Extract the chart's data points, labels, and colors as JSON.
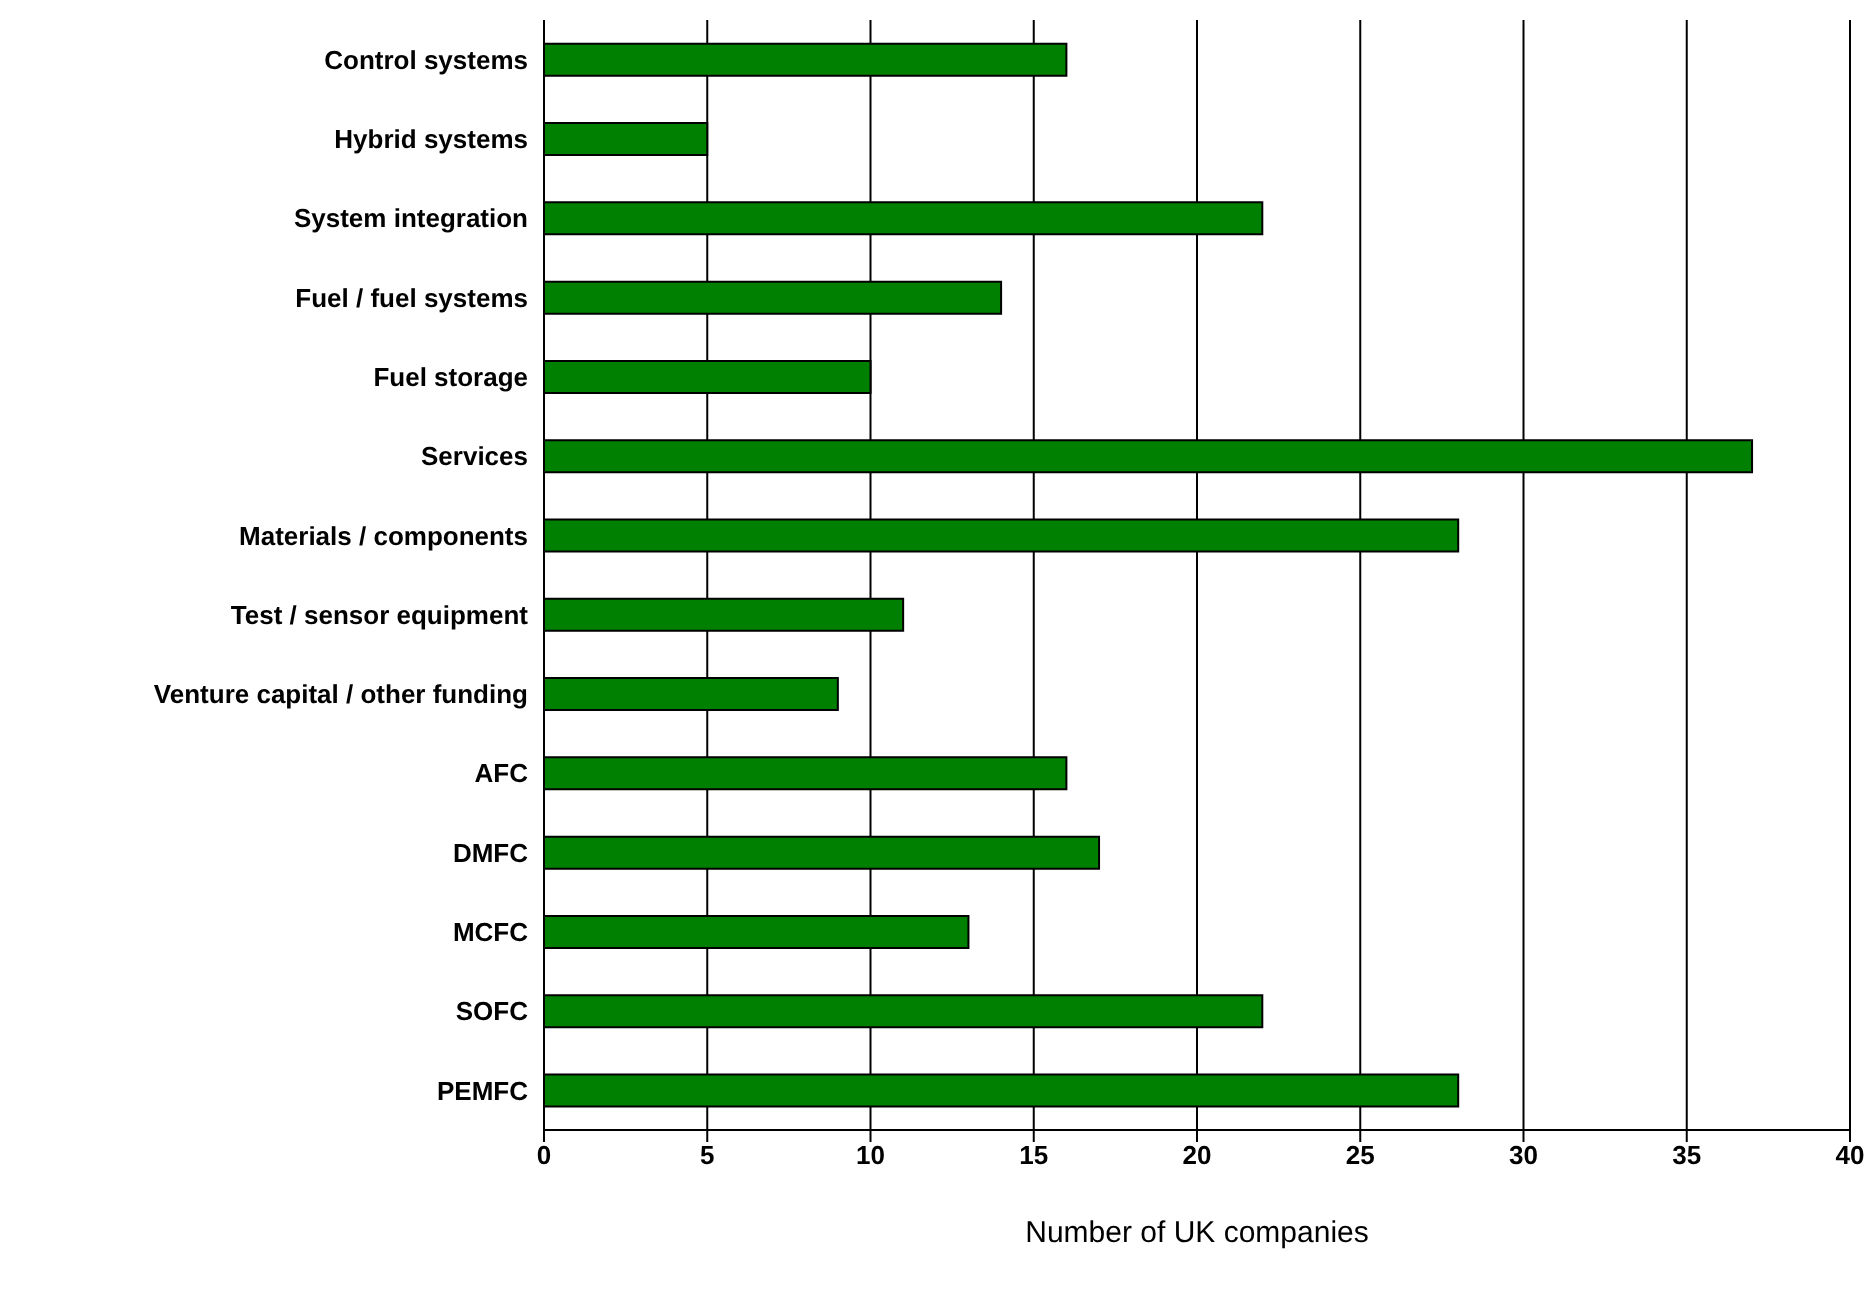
{
  "chart_data": {
    "type": "bar",
    "orientation": "horizontal",
    "xlabel": "Number of UK companies",
    "categories": [
      "Control systems",
      "Hybrid systems",
      "System integration",
      "Fuel / fuel systems",
      "Fuel storage",
      "Services",
      "Materials / components",
      "Test / sensor equipment",
      "Venture capital / other funding",
      "AFC",
      "DMFC",
      "MCFC",
      "SOFC",
      "PEMFC"
    ],
    "values": [
      16,
      5,
      22,
      14,
      10,
      37,
      28,
      11,
      9,
      16,
      17,
      13,
      22,
      28
    ],
    "color": "#008000",
    "xlim": [
      0,
      40
    ],
    "xticks": [
      0,
      5,
      10,
      15,
      20,
      25,
      30,
      35,
      40
    ],
    "grid": "x",
    "legend": false
  }
}
